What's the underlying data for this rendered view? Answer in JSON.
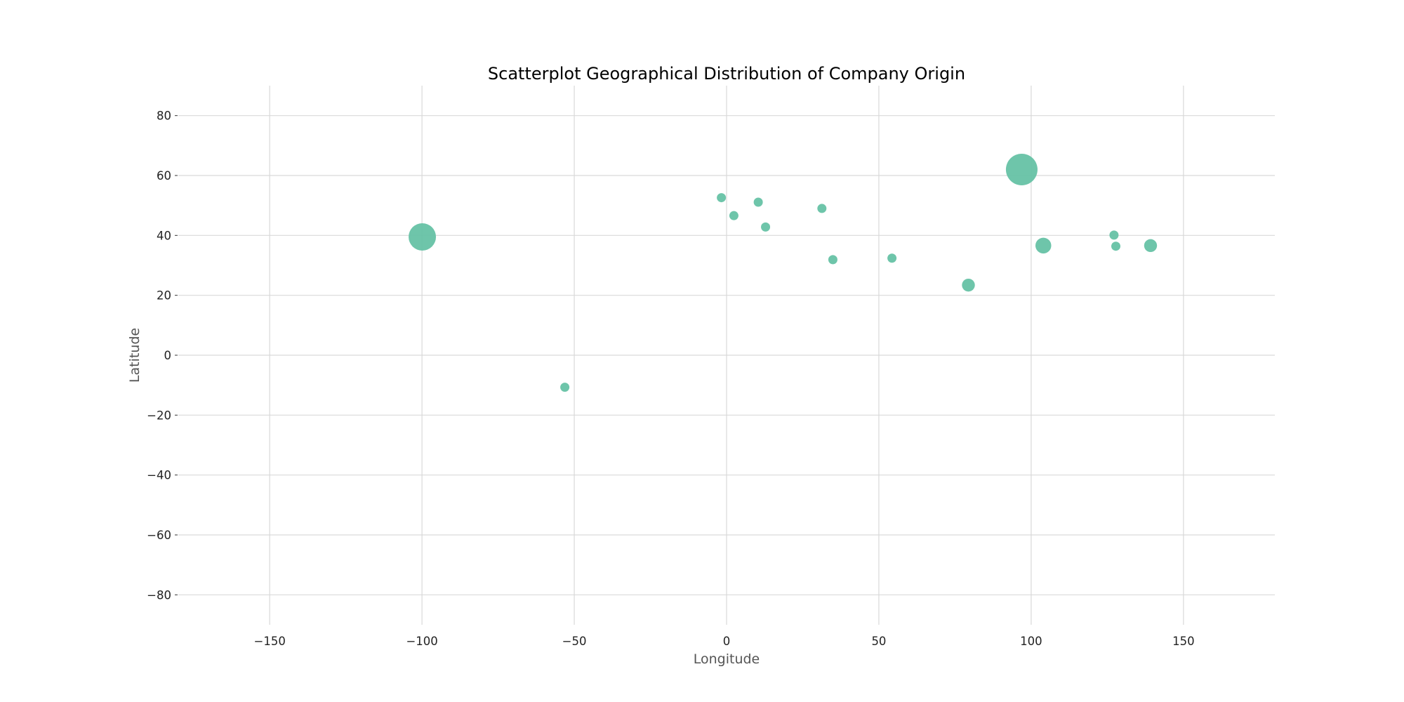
{
  "chart_data": {
    "type": "scatter",
    "title": "Scatterplot Geographical Distribution of Company Origin",
    "xlabel": "Longitude",
    "ylabel": "Latitude",
    "xlim": [
      -180,
      180
    ],
    "ylim": [
      -90,
      90
    ],
    "x_ticks": [
      -150,
      -100,
      -50,
      0,
      50,
      100,
      150
    ],
    "y_ticks": [
      -80,
      -60,
      -40,
      -20,
      0,
      20,
      40,
      60,
      80
    ],
    "grid": true,
    "marker_color": "#66c2a5",
    "series": [
      {
        "points": [
          {
            "x": -99.9,
            "y": 39.5,
            "size": 9
          },
          {
            "x": -53.1,
            "y": -10.7,
            "size": 1
          },
          {
            "x": -1.7,
            "y": 52.6,
            "size": 1
          },
          {
            "x": 2.4,
            "y": 46.6,
            "size": 1
          },
          {
            "x": 10.4,
            "y": 51.1,
            "size": 1
          },
          {
            "x": 12.8,
            "y": 42.8,
            "size": 1
          },
          {
            "x": 31.3,
            "y": 49.0,
            "size": 1
          },
          {
            "x": 34.9,
            "y": 31.9,
            "size": 1
          },
          {
            "x": 54.3,
            "y": 32.4,
            "size": 1
          },
          {
            "x": 79.4,
            "y": 23.4,
            "size": 2
          },
          {
            "x": 96.9,
            "y": 62.0,
            "size": 12
          },
          {
            "x": 104.0,
            "y": 36.6,
            "size": 3
          },
          {
            "x": 127.2,
            "y": 40.1,
            "size": 1
          },
          {
            "x": 127.8,
            "y": 36.4,
            "size": 1
          },
          {
            "x": 139.2,
            "y": 36.6,
            "size": 2
          }
        ]
      }
    ]
  }
}
